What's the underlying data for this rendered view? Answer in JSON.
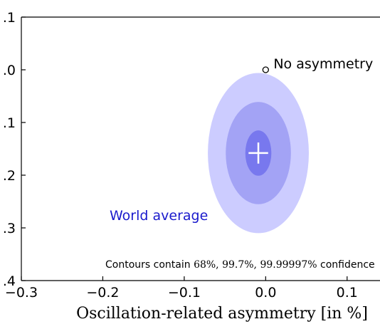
{
  "chart_data": {
    "type": "scatter",
    "xlabel": "Oscillation-related asymmetry [in %]",
    "xlim": [
      -0.3,
      0.15
    ],
    "ylim": [
      -0.4,
      0.1
    ],
    "x_ticks": [
      -0.3,
      -0.2,
      -0.1,
      0.0,
      0.1
    ],
    "x_tick_labels": [
      "−0.3",
      "−0.2",
      "−0.1",
      "0.0",
      "0.1"
    ],
    "y_ticks": [
      0.1,
      0.0,
      -0.1,
      -0.2,
      -0.3,
      -0.4
    ],
    "y_tick_labels": [
      ".1",
      ".0",
      ".1",
      ".2",
      ".3",
      ".4"
    ],
    "series": [
      {
        "name": "World average",
        "center": {
          "x": -0.009,
          "y": -0.158
        },
        "error_bar": {
          "x": 0.012,
          "y": 0.02
        },
        "contours": [
          {
            "level": "99.99997%",
            "semi_x": 0.062,
            "semi_y": 0.152,
            "color": "#ccccff"
          },
          {
            "level": "99.7%",
            "semi_x": 0.04,
            "semi_y": 0.097,
            "color": "#a3a3f5"
          },
          {
            "level": "68%",
            "semi_x": 0.016,
            "semi_y": 0.043,
            "color": "#7878ee"
          }
        ]
      }
    ],
    "reference_point": {
      "label": "No asymmetry",
      "x": 0.0,
      "y": 0.0
    },
    "note": {
      "prefix": "Contours contain ",
      "levels": "68%, 99.7%, 99.99997%",
      "suffix": " confidence"
    },
    "colors": {
      "series_label": "#1a1acc",
      "crosshair": "#ffffff"
    }
  }
}
